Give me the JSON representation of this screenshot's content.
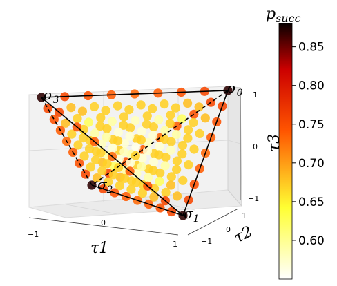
{
  "chart_data": {
    "type": "scatter",
    "projection": "3d",
    "xlabel": "τ1",
    "ylabel": "τ2",
    "zlabel": "τ3",
    "xticks": [
      "−1",
      "0",
      "1"
    ],
    "yticks": [
      "−1",
      "0",
      "1"
    ],
    "zticks": [
      "−1",
      "0",
      "1"
    ],
    "xlim": [
      -1,
      1
    ],
    "ylim": [
      -1,
      1
    ],
    "zlim": [
      -1,
      1
    ],
    "grid": true,
    "vertices": [
      {
        "label": "σ0",
        "base": "σ",
        "sub": "0",
        "x": 1,
        "y": 1,
        "z": 1
      },
      {
        "label": "σ1",
        "base": "σ",
        "sub": "1",
        "x": 1,
        "y": -1,
        "z": -1
      },
      {
        "label": "σ2",
        "base": "σ",
        "sub": "2",
        "x": -1,
        "y": 1,
        "z": -1
      },
      {
        "label": "σ3",
        "base": "σ",
        "sub": "3",
        "x": -1,
        "y": -1,
        "z": 1
      }
    ],
    "colorbar": {
      "title": "p",
      "title_sub": "succ",
      "cmap": "hot_r",
      "vmin": 0.55,
      "vmax": 0.88,
      "ticks": [
        "0.60",
        "0.65",
        "0.70",
        "0.75",
        "0.80",
        "0.85"
      ],
      "tick_values": [
        0.6,
        0.65,
        0.7,
        0.75,
        0.8,
        0.85
      ]
    },
    "sampling": "grid of states inside the tetrahedron on the τ-plane layers; color = success probability, highest at vertices and edges, lowest near the center",
    "vertex_value": 0.87,
    "edge_value": 0.76,
    "center_value": 0.56
  }
}
